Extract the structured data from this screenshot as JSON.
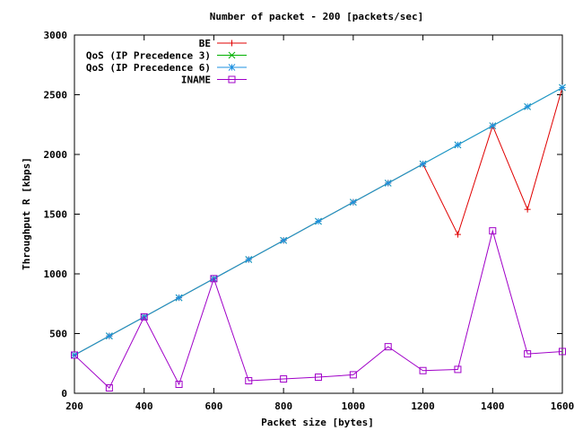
{
  "chart_data": {
    "type": "line",
    "title": "Number of packet - 200 [packets/sec]",
    "xlabel": "Packet size [bytes]",
    "ylabel": "Throughput R [kbps]",
    "xlim": [
      200,
      1600
    ],
    "ylim": [
      0,
      3000
    ],
    "xticks": [
      200,
      400,
      600,
      800,
      1000,
      1200,
      1400,
      1600
    ],
    "yticks": [
      0,
      500,
      1000,
      1500,
      2000,
      2500,
      3000
    ],
    "x": [
      200,
      300,
      400,
      500,
      600,
      700,
      800,
      900,
      1000,
      1100,
      1200,
      1300,
      1400,
      1500,
      1600
    ],
    "grid": false,
    "legend_position": "top-left",
    "series": [
      {
        "name": "BE",
        "color": "#e00000",
        "marker": "plus",
        "values": [
          320,
          480,
          640,
          800,
          960,
          1120,
          1280,
          1440,
          1600,
          1760,
          1920,
          1330,
          2240,
          1540,
          2560
        ]
      },
      {
        "name": "QoS (IP Precedence 3)",
        "color": "#00b000",
        "marker": "cross",
        "values": [
          320,
          480,
          640,
          800,
          960,
          1120,
          1280,
          1440,
          1600,
          1760,
          1920,
          2080,
          2240,
          2400,
          2560
        ]
      },
      {
        "name": "QoS (IP Precedence 6)",
        "color": "#1e90e0",
        "marker": "star",
        "values": [
          320,
          480,
          640,
          800,
          960,
          1120,
          1280,
          1440,
          1600,
          1760,
          1920,
          2080,
          2240,
          2400,
          2560
        ]
      },
      {
        "name": "INAME",
        "color": "#a000c8",
        "marker": "square",
        "values": [
          320,
          45,
          640,
          75,
          960,
          105,
          120,
          135,
          155,
          390,
          190,
          200,
          1360,
          330,
          350
        ]
      }
    ]
  }
}
